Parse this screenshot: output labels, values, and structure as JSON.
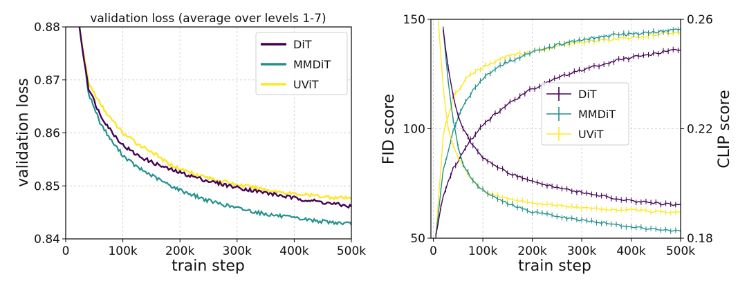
{
  "colors": {
    "DiT": "#440154",
    "MMDiT": "#21918c",
    "UViT": "#fde725"
  },
  "chart_data": [
    {
      "type": "line",
      "title": "validation loss (average over levels 1-7)",
      "xlabel": "train step",
      "ylabel": "validation loss",
      "xlim": [
        0,
        500000
      ],
      "ylim": [
        0.84,
        0.88
      ],
      "xticks": [
        0,
        100000,
        200000,
        300000,
        400000,
        500000
      ],
      "xtick_labels": [
        "0",
        "100k",
        "200k",
        "300k",
        "400k",
        "500k"
      ],
      "yticks": [
        0.84,
        0.85,
        0.86,
        0.87,
        0.88
      ],
      "ytick_labels": [
        "0.84",
        "0.85",
        "0.86",
        "0.87",
        "0.88"
      ],
      "grid": true,
      "legend": "top-right",
      "series": [
        {
          "name": "DiT",
          "color": "#440154",
          "x": [
            15000,
            25000,
            40000,
            60000,
            80000,
            100000,
            125000,
            150000,
            175000,
            200000,
            250000,
            300000,
            350000,
            400000,
            450000,
            500000
          ],
          "y": [
            0.888,
            0.879,
            0.8685,
            0.8635,
            0.8603,
            0.8577,
            0.8558,
            0.8545,
            0.8534,
            0.8525,
            0.8509,
            0.8497,
            0.8487,
            0.8477,
            0.8469,
            0.8461
          ]
        },
        {
          "name": "MMDiT",
          "color": "#21918c",
          "x": [
            15000,
            25000,
            40000,
            60000,
            80000,
            100000,
            125000,
            150000,
            175000,
            200000,
            250000,
            300000,
            350000,
            400000,
            450000,
            500000
          ],
          "y": [
            0.888,
            0.879,
            0.8675,
            0.862,
            0.8585,
            0.8558,
            0.8535,
            0.852,
            0.8505,
            0.8492,
            0.8472,
            0.8458,
            0.8447,
            0.8439,
            0.8433,
            0.8428
          ]
        },
        {
          "name": "UViT",
          "color": "#fde725",
          "x": [
            15000,
            25000,
            40000,
            60000,
            80000,
            100000,
            125000,
            150000,
            175000,
            200000,
            250000,
            300000,
            350000,
            400000,
            450000,
            500000
          ],
          "y": [
            0.888,
            0.879,
            0.8695,
            0.8655,
            0.8625,
            0.86,
            0.858,
            0.8565,
            0.8545,
            0.8532,
            0.8515,
            0.8502,
            0.8493,
            0.8485,
            0.848,
            0.8476
          ]
        }
      ]
    },
    {
      "type": "line",
      "title": "",
      "xlabel": "train step",
      "ylabel": "FID score",
      "y2label": "CLIP score",
      "xlim": [
        -5000,
        500000
      ],
      "ylim": [
        50,
        150
      ],
      "y2lim": [
        0.18,
        0.26
      ],
      "xticks": [
        0,
        100000,
        200000,
        300000,
        400000,
        500000
      ],
      "xtick_labels": [
        "0",
        "100k",
        "200k",
        "300k",
        "400k",
        "500k"
      ],
      "yticks": [
        50,
        100,
        150
      ],
      "ytick_labels": [
        "50",
        "100",
        "150"
      ],
      "y2ticks": [
        0.18,
        0.22,
        0.26
      ],
      "y2tick_labels": [
        "0.18",
        "0.22",
        "0.26"
      ],
      "grid": true,
      "legend": "center",
      "errorbars": true,
      "fid_series": [
        {
          "name": "DiT",
          "color": "#440154",
          "x": [
            20000,
            30000,
            40000,
            50000,
            60000,
            80000,
            100000,
            120000,
            150000,
            200000,
            250000,
            300000,
            350000,
            400000,
            450000,
            500000
          ],
          "y": [
            145,
            128,
            115,
            106,
            100,
            92,
            87,
            84,
            80,
            76,
            73,
            71,
            69,
            67,
            66,
            65
          ]
        },
        {
          "name": "MMDiT",
          "color": "#21918c",
          "x": [
            20000,
            30000,
            40000,
            50000,
            60000,
            80000,
            100000,
            120000,
            150000,
            200000,
            250000,
            300000,
            350000,
            400000,
            450000,
            500000
          ],
          "y": [
            145,
            122,
            104,
            92,
            84,
            76,
            72,
            69,
            66,
            62,
            60,
            58,
            57,
            55,
            54,
            53
          ]
        },
        {
          "name": "UViT",
          "color": "#fde725",
          "x": [
            10000,
            20000,
            30000,
            40000,
            50000,
            60000,
            80000,
            100000,
            120000,
            150000,
            200000,
            250000,
            300000,
            350000,
            400000,
            450000,
            500000
          ],
          "y": [
            150,
            118,
            100,
            92,
            87,
            83,
            76,
            72,
            70,
            68,
            66,
            65,
            64,
            63,
            63,
            62,
            62
          ]
        }
      ],
      "clip_series": [
        {
          "name": "DiT",
          "color": "#440154",
          "x": [
            5000,
            20000,
            40000,
            60000,
            80000,
            100000,
            120000,
            150000,
            200000,
            250000,
            300000,
            350000,
            400000,
            450000,
            500000
          ],
          "y": [
            0.181,
            0.196,
            0.2055,
            0.2115,
            0.217,
            0.221,
            0.2245,
            0.229,
            0.2345,
            0.2385,
            0.2415,
            0.244,
            0.246,
            0.2475,
            0.249
          ]
        },
        {
          "name": "MMDiT",
          "color": "#21918c",
          "x": [
            5000,
            20000,
            40000,
            60000,
            80000,
            100000,
            120000,
            150000,
            200000,
            250000,
            300000,
            350000,
            400000,
            450000,
            500000
          ],
          "y": [
            0.181,
            0.205,
            0.219,
            0.228,
            0.234,
            0.2385,
            0.2415,
            0.2445,
            0.248,
            0.2505,
            0.2525,
            0.254,
            0.2545,
            0.2555,
            0.2565
          ]
        },
        {
          "name": "UViT",
          "color": "#fde725",
          "x": [
            5000,
            20000,
            40000,
            60000,
            80000,
            100000,
            120000,
            150000,
            200000,
            250000,
            300000,
            350000,
            400000,
            450000,
            500000
          ],
          "y": [
            0.181,
            0.218,
            0.2315,
            0.237,
            0.2405,
            0.2425,
            0.2445,
            0.2465,
            0.248,
            0.2505,
            0.2515,
            0.2525,
            0.2535,
            0.2545,
            0.2555
          ]
        }
      ]
    }
  ]
}
